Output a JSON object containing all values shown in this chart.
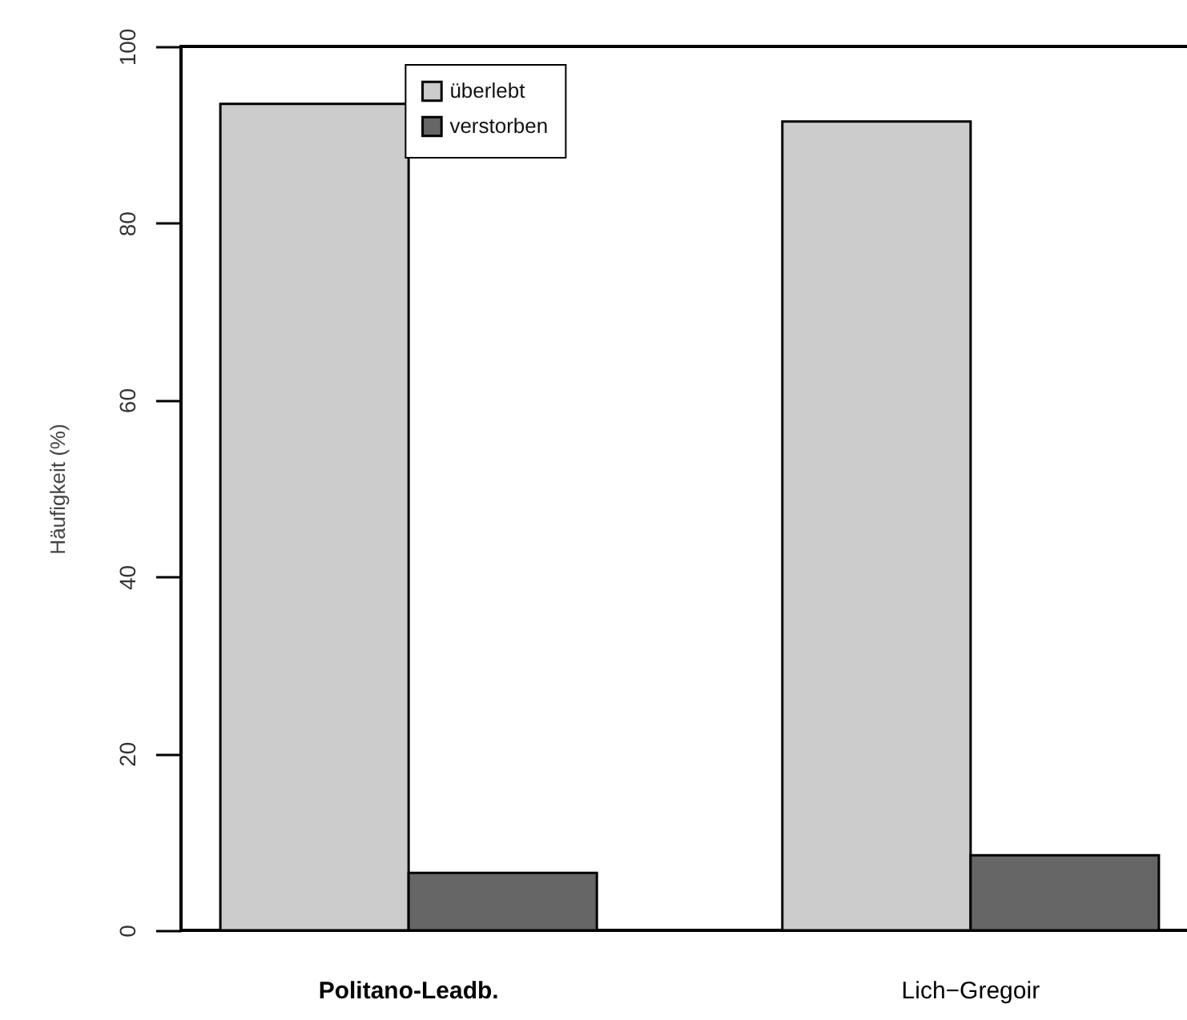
{
  "chart_data": {
    "type": "bar",
    "ylabel": "Häufigkeit (%)",
    "categories": [
      "Politano-Leadb.",
      "Lich−Gregoir"
    ],
    "series": [
      {
        "name": "überlebt",
        "color": "#cccccc",
        "values": [
          93.5,
          91.5
        ]
      },
      {
        "name": "verstorben",
        "color": "#666666",
        "values": [
          6.5,
          8.5
        ]
      }
    ],
    "ylim": [
      0,
      100
    ],
    "yticks": [
      0,
      20,
      40,
      60,
      80,
      100
    ],
    "legend": "top"
  }
}
